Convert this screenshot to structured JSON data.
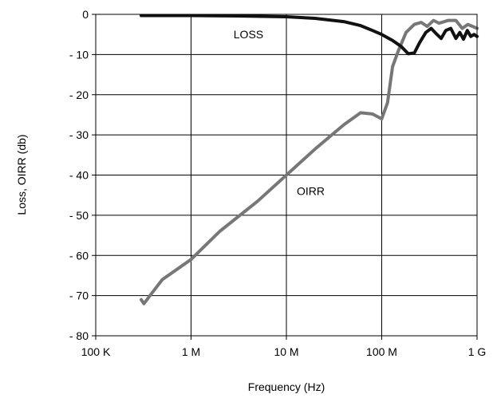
{
  "chart_data": {
    "type": "line",
    "title": "",
    "xlabel": "Frequency (Hz)",
    "ylabel": "Loss, OIRR (db)",
    "x_scale": "log",
    "xlim": [
      100000,
      1000000000
    ],
    "ylim": [
      -80,
      0
    ],
    "grid": true,
    "legend": "none",
    "x_ticks": [
      {
        "value": 100000,
        "label": "100 K"
      },
      {
        "value": 1000000,
        "label": "1 M"
      },
      {
        "value": 10000000,
        "label": "10 M"
      },
      {
        "value": 100000000,
        "label": "100 M"
      },
      {
        "value": 1000000000,
        "label": "1 G"
      }
    ],
    "y_ticks": [
      {
        "value": 0,
        "label": "0"
      },
      {
        "value": -10,
        "label": "- 10"
      },
      {
        "value": -20,
        "label": "- 20"
      },
      {
        "value": -30,
        "label": "- 30"
      },
      {
        "value": -40,
        "label": "- 40"
      },
      {
        "value": -50,
        "label": "- 50"
      },
      {
        "value": -60,
        "label": "- 60"
      },
      {
        "value": -70,
        "label": "- 70"
      },
      {
        "value": -80,
        "label": "- 80"
      }
    ],
    "series": [
      {
        "name": "LOSS",
        "color": "#111111",
        "label_at": {
          "x": 4000000,
          "y": -6
        },
        "points": [
          [
            300000,
            -0.3
          ],
          [
            500000,
            -0.3
          ],
          [
            1000000,
            -0.3
          ],
          [
            3000000,
            -0.4
          ],
          [
            10000000,
            -0.6
          ],
          [
            20000000,
            -1.0
          ],
          [
            40000000,
            -1.8
          ],
          [
            60000000,
            -2.8
          ],
          [
            80000000,
            -4.0
          ],
          [
            100000000,
            -5.0
          ],
          [
            130000000,
            -6.5
          ],
          [
            160000000,
            -8.0
          ],
          [
            190000000,
            -9.8
          ],
          [
            220000000,
            -9.6
          ],
          [
            250000000,
            -7.0
          ],
          [
            290000000,
            -4.5
          ],
          [
            330000000,
            -3.5
          ],
          [
            380000000,
            -5.0
          ],
          [
            420000000,
            -6.0
          ],
          [
            470000000,
            -4.0
          ],
          [
            530000000,
            -3.5
          ],
          [
            600000000,
            -6.0
          ],
          [
            660000000,
            -4.5
          ],
          [
            720000000,
            -6.2
          ],
          [
            790000000,
            -4.0
          ],
          [
            860000000,
            -5.5
          ],
          [
            930000000,
            -5.0
          ],
          [
            1000000000,
            -5.5
          ]
        ]
      },
      {
        "name": "OIRR",
        "color": "#777777",
        "label_at": {
          "x": 18000000,
          "y": -45
        },
        "points": [
          [
            300000,
            -71.0
          ],
          [
            320000,
            -72.0
          ],
          [
            400000,
            -69.0
          ],
          [
            500000,
            -66.0
          ],
          [
            1000000,
            -61.0
          ],
          [
            2000000,
            -54.0
          ],
          [
            5000000,
            -46.5
          ],
          [
            10000000,
            -40.0
          ],
          [
            20000000,
            -33.5
          ],
          [
            40000000,
            -27.5
          ],
          [
            60000000,
            -24.5
          ],
          [
            80000000,
            -24.8
          ],
          [
            100000000,
            -26.0
          ],
          [
            115000000,
            -22.0
          ],
          [
            130000000,
            -13.0
          ],
          [
            150000000,
            -9.0
          ],
          [
            180000000,
            -4.5
          ],
          [
            220000000,
            -2.5
          ],
          [
            260000000,
            -2.0
          ],
          [
            300000000,
            -3.0
          ],
          [
            350000000,
            -1.5
          ],
          [
            400000000,
            -2.2
          ],
          [
            500000000,
            -1.5
          ],
          [
            600000000,
            -1.5
          ],
          [
            700000000,
            -3.5
          ],
          [
            800000000,
            -2.5
          ],
          [
            900000000,
            -3.0
          ],
          [
            1000000000,
            -3.5
          ]
        ]
      }
    ]
  }
}
